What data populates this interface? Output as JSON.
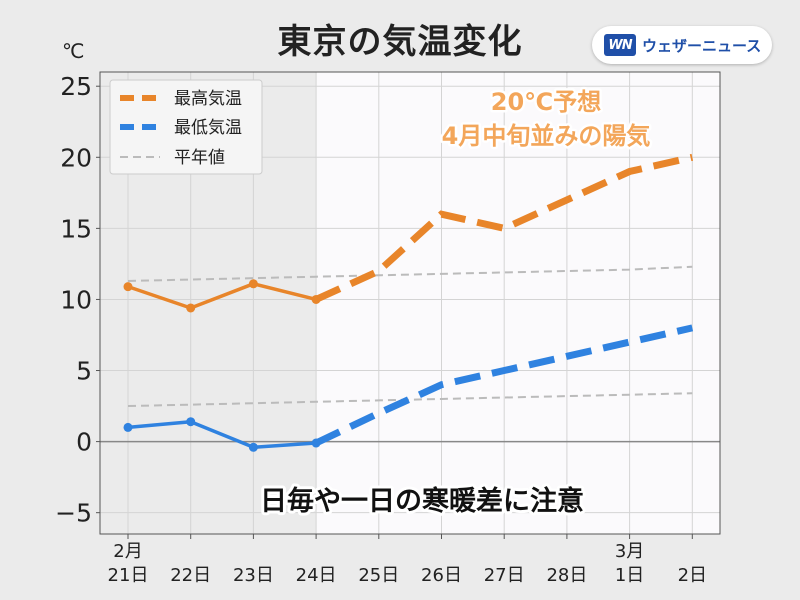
{
  "header": {
    "title": "東京の気温変化",
    "logo_mark": "WN",
    "logo_text": "ウェザーニュース"
  },
  "chart_data": {
    "type": "line",
    "ylabel": "℃",
    "ylim": [
      -6.5,
      26
    ],
    "yticks": [
      25,
      20,
      15,
      10,
      5,
      0,
      -5
    ],
    "ytick_labels": [
      "25",
      "20",
      "15",
      "10",
      "5",
      "0",
      "−5"
    ],
    "categories": [
      [
        "2月",
        "21日"
      ],
      [
        "",
        "22日"
      ],
      [
        "",
        "23日"
      ],
      [
        "",
        "24日"
      ],
      [
        "",
        "25日"
      ],
      [
        "",
        "26日"
      ],
      [
        "",
        "27日"
      ],
      [
        "",
        "28日"
      ],
      [
        "3月",
        "1日"
      ],
      [
        "",
        "2日"
      ]
    ],
    "observed_count": 4,
    "series": [
      {
        "name": "最高気温",
        "color": "#e8852a",
        "values": [
          10.9,
          9.4,
          11.1,
          10.0,
          12.0,
          16.0,
          15.0,
          17.0,
          19.0,
          20.0
        ]
      },
      {
        "name": "最低気温",
        "color": "#2f82e0",
        "values": [
          1.0,
          1.4,
          -0.4,
          -0.1,
          2.0,
          4.0,
          5.0,
          6.0,
          7.0,
          8.0
        ]
      },
      {
        "name": "平年値",
        "color": "#bbbbbb",
        "values_high": [
          11.3,
          11.4,
          11.5,
          11.6,
          11.7,
          11.8,
          11.9,
          12.0,
          12.1,
          12.3
        ],
        "values_low": [
          2.5,
          2.6,
          2.7,
          2.8,
          2.9,
          3.0,
          3.1,
          3.2,
          3.3,
          3.4
        ]
      }
    ],
    "legend_position": "top-left",
    "grid": true,
    "annotations": {
      "forecast_line1": "20℃予想",
      "forecast_line2": "4月中旬並みの陽気",
      "note": "日毎や一日の寒暖差に注意"
    }
  }
}
